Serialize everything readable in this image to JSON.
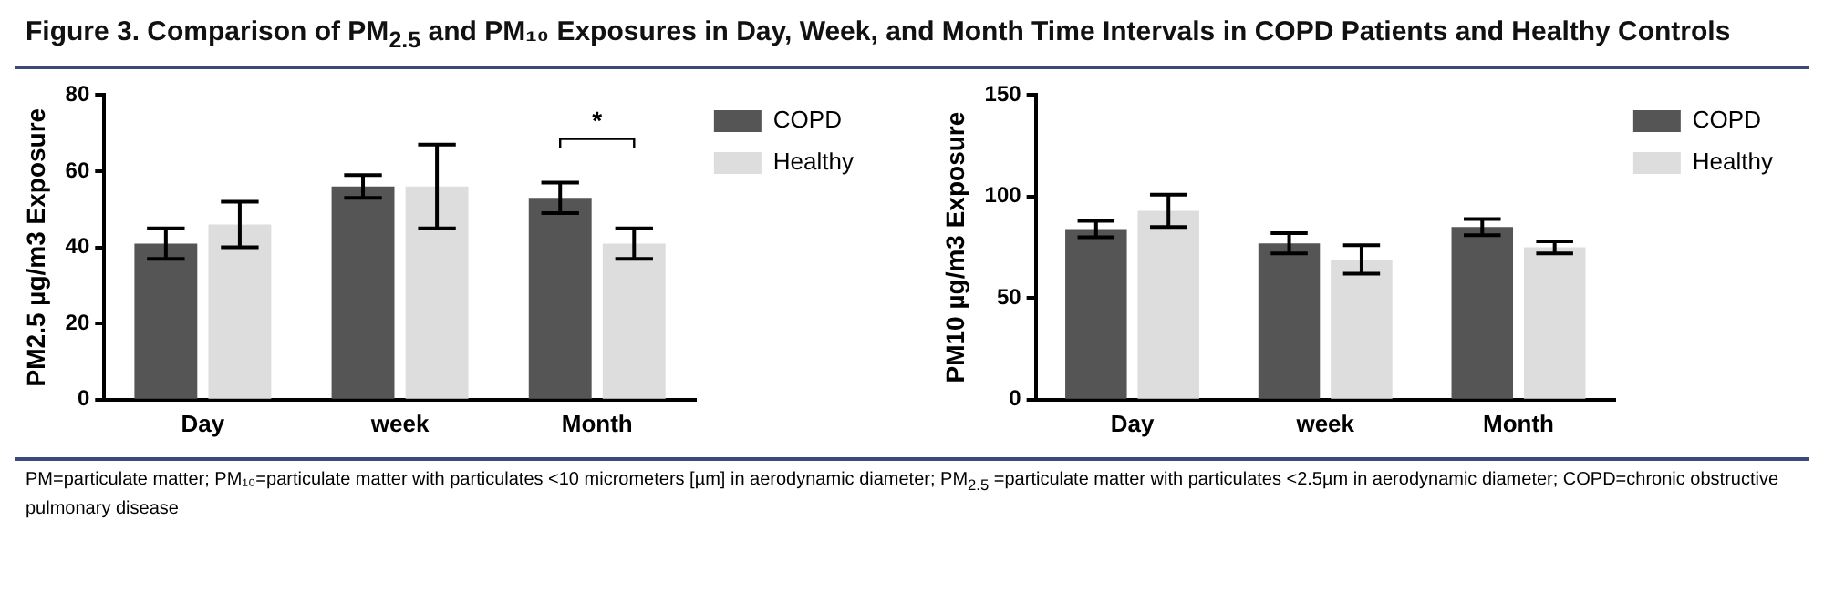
{
  "chart_data": [
    {
      "type": "bar",
      "title": "Figure 3. Comparison of PM$_{2.5}$ and PM₁₀ Exposures in Day, Week, and Month Time Intervals in COPD Patients and Healthy Controls",
      "ylabel": "PM2.5 µg/m3 Exposure",
      "categories": [
        "Day",
        "week",
        "Month"
      ],
      "ylim": [
        0,
        80
      ],
      "yticks": [
        0,
        20,
        40,
        60,
        80
      ],
      "legend": "top right",
      "series": [
        {
          "name": "COPD",
          "color": "#555555",
          "values": [
            41,
            56,
            53
          ],
          "errors": [
            4,
            3,
            4
          ]
        },
        {
          "name": "Healthy",
          "color": "#dddddd",
          "values": [
            46,
            56,
            41
          ],
          "errors": [
            6,
            11,
            4
          ]
        }
      ],
      "annotations": [
        "*"
      ]
    },
    {
      "type": "bar",
      "ylabel": "PM10 µg/m3 Exposure",
      "categories": [
        "Day",
        "week",
        "Month"
      ],
      "ylim": [
        0,
        150
      ],
      "yticks": [
        0,
        50,
        100,
        150
      ],
      "legend": "top right",
      "series": [
        {
          "name": "COPD",
          "color": "#555555",
          "values": [
            84,
            77,
            85
          ],
          "errors": [
            4,
            5,
            4
          ]
        },
        {
          "name": "Healthy",
          "color": "#dddddd",
          "values": [
            93,
            69,
            75
          ],
          "errors": [
            8,
            7,
            3
          ]
        }
      ],
      "annotations": [
        "PM=particulate matter; PM₁₀=particulate matter with particulates <10 micrometers [µm] in aerodynamic diameter; PM$_{2.5}$ =particulate matter with particulates <2.5µm in aerodynamic diameter; COPD=chronic obstructive pulmonary disease"
      ]
    }
  ]
}
